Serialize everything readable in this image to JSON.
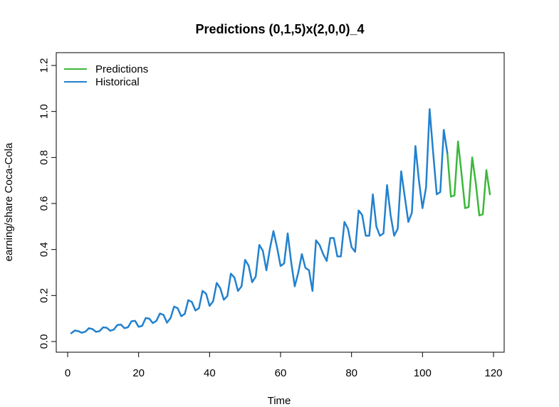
{
  "chart_data": {
    "type": "line",
    "title": "Predictions (0,1,5)x(2,0,0)_4",
    "xlabel": "Time",
    "ylabel": "earning/share Coca-Cola",
    "xlim": [
      0,
      120
    ],
    "ylim": [
      0.0,
      1.2
    ],
    "xticks": [
      0,
      20,
      40,
      60,
      80,
      100,
      120
    ],
    "yticks": [
      0.0,
      0.2,
      0.4,
      0.6,
      0.8,
      1.0,
      1.2
    ],
    "xtick_labels": [
      "0",
      "20",
      "40",
      "60",
      "80",
      "100",
      "120"
    ],
    "ytick_labels": [
      "0.0",
      "0.2",
      "0.4",
      "0.6",
      "0.8",
      "1.0",
      "1.2"
    ],
    "grid": false,
    "legend_position": "top-left",
    "series": [
      {
        "name": "Predictions",
        "color": "#3cb83c",
        "x": [
          107,
          108,
          109,
          110,
          111,
          112,
          113,
          114,
          115,
          116,
          117,
          118,
          119
        ],
        "y": [
          0.82,
          0.63,
          0.635,
          0.87,
          0.73,
          0.58,
          0.585,
          0.8,
          0.69,
          0.548,
          0.553,
          0.745,
          0.64
        ]
      },
      {
        "name": "Historical",
        "color": "#2281ce",
        "x": [
          1,
          2,
          3,
          4,
          5,
          6,
          7,
          8,
          9,
          10,
          11,
          12,
          13,
          14,
          15,
          16,
          17,
          18,
          19,
          20,
          21,
          22,
          23,
          24,
          25,
          26,
          27,
          28,
          29,
          30,
          31,
          32,
          33,
          34,
          35,
          36,
          37,
          38,
          39,
          40,
          41,
          42,
          43,
          44,
          45,
          46,
          47,
          48,
          49,
          50,
          51,
          52,
          53,
          54,
          55,
          56,
          57,
          58,
          59,
          60,
          61,
          62,
          63,
          64,
          65,
          66,
          67,
          68,
          69,
          70,
          71,
          72,
          73,
          74,
          75,
          76,
          77,
          78,
          79,
          80,
          81,
          82,
          83,
          84,
          85,
          86,
          87,
          88,
          89,
          90,
          91,
          92,
          93,
          94,
          95,
          96,
          97,
          98,
          99,
          100,
          101,
          102,
          103,
          104,
          105,
          106,
          107
        ],
        "y": [
          0.036,
          0.048,
          0.045,
          0.038,
          0.043,
          0.058,
          0.054,
          0.042,
          0.045,
          0.062,
          0.06,
          0.047,
          0.052,
          0.072,
          0.074,
          0.058,
          0.062,
          0.088,
          0.09,
          0.064,
          0.068,
          0.102,
          0.1,
          0.08,
          0.09,
          0.122,
          0.116,
          0.082,
          0.102,
          0.152,
          0.145,
          0.11,
          0.12,
          0.18,
          0.172,
          0.135,
          0.145,
          0.22,
          0.208,
          0.155,
          0.175,
          0.255,
          0.232,
          0.182,
          0.198,
          0.295,
          0.278,
          0.22,
          0.24,
          0.355,
          0.33,
          0.258,
          0.282,
          0.42,
          0.395,
          0.31,
          0.405,
          0.48,
          0.41,
          0.328,
          0.34,
          0.47,
          0.345,
          0.24,
          0.3,
          0.38,
          0.32,
          0.31,
          0.22,
          0.44,
          0.42,
          0.38,
          0.35,
          0.45,
          0.45,
          0.37,
          0.37,
          0.52,
          0.49,
          0.41,
          0.39,
          0.57,
          0.55,
          0.46,
          0.46,
          0.64,
          0.5,
          0.46,
          0.47,
          0.68,
          0.55,
          0.46,
          0.49,
          0.74,
          0.63,
          0.52,
          0.56,
          0.85,
          0.7,
          0.58,
          0.67,
          1.01,
          0.82,
          0.64,
          0.65,
          0.92,
          0.82
        ]
      }
    ]
  }
}
